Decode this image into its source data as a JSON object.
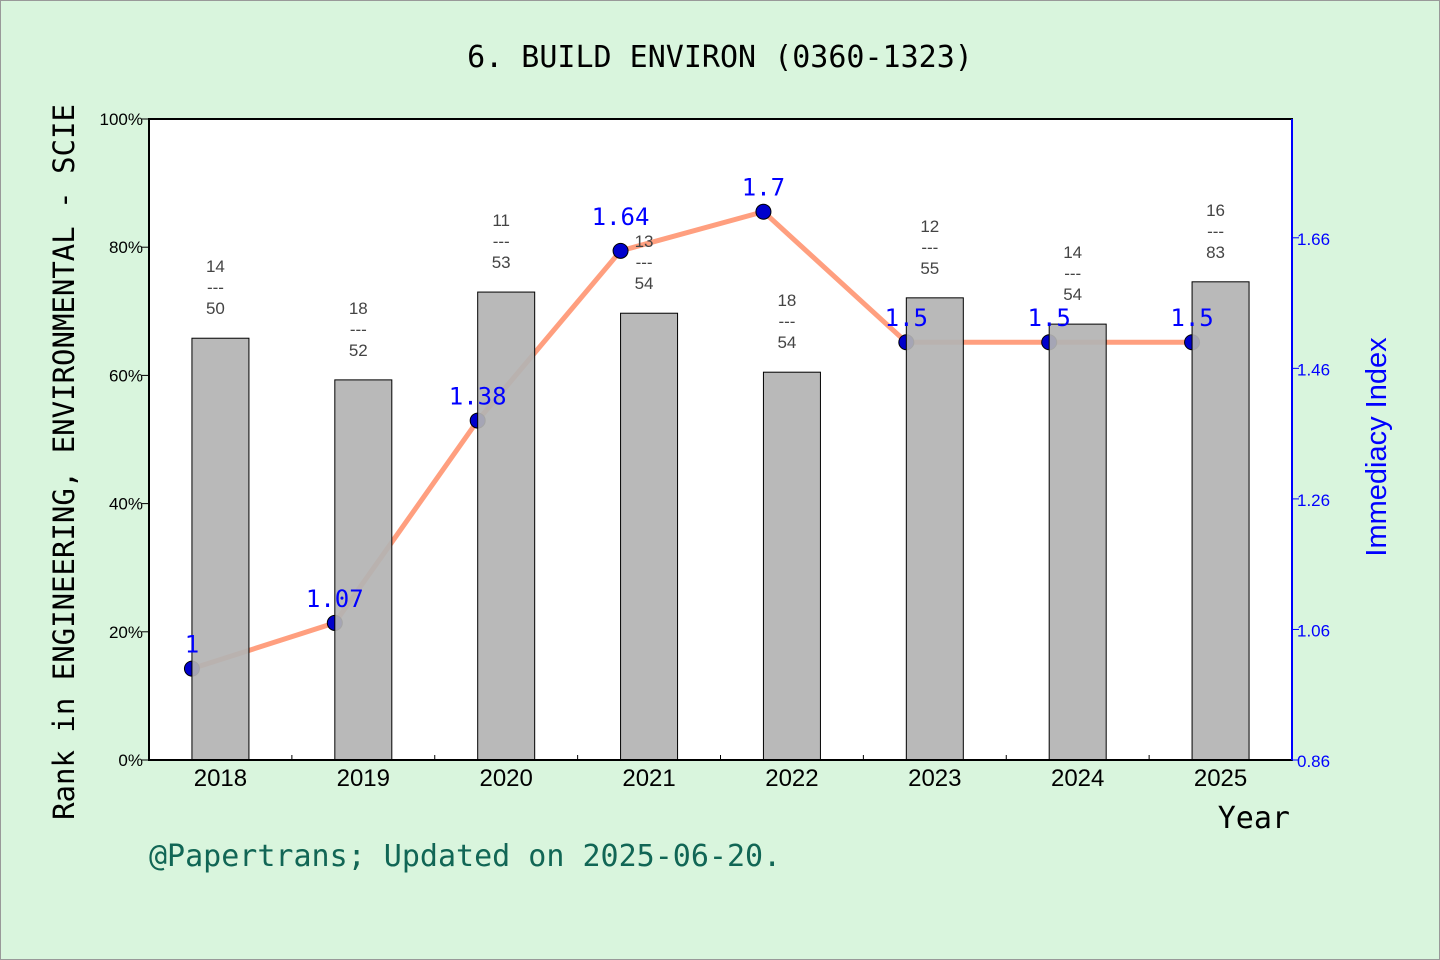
{
  "chart_data": {
    "type": "bar+line",
    "title": "6. BUILD ENVIRON (0360-1323)",
    "xlabel": "Year",
    "ylabel_left": "Rank in ENGINEERING, ENVIRONMENTAL - SCIE",
    "ylabel_right": "Immediacy Index",
    "categories": [
      "2018",
      "2019",
      "2020",
      "2021",
      "2022",
      "2023",
      "2024",
      "2025"
    ],
    "left_ticks": [
      "0%",
      "20%",
      "40%",
      "60%",
      "80%",
      "100%"
    ],
    "left_ylim": [
      0,
      100
    ],
    "right_ticks": [
      "0.86",
      "1.06",
      "1.26",
      "1.46",
      "1.66"
    ],
    "right_ylim": [
      0.86,
      1.842
    ],
    "bars": {
      "values_percent": [
        65.8,
        59.3,
        73.0,
        69.7,
        60.5,
        72.1,
        68.0,
        74.6
      ],
      "rank": [
        "14",
        "18",
        "11",
        "13",
        "18",
        "12",
        "14",
        "16"
      ],
      "total": [
        "50",
        "52",
        "53",
        "54",
        "54",
        "55",
        "54",
        "83"
      ],
      "separator": "---",
      "color": "#b3b3b3"
    },
    "line": {
      "values": [
        1.0,
        1.07,
        1.38,
        1.64,
        1.7,
        1.5,
        1.5,
        1.5
      ],
      "labels": [
        "1",
        "1.07",
        "1.38",
        "1.64",
        "1.7",
        "1.5",
        "1.5",
        "1.5"
      ],
      "line_color": "#ff9f7f",
      "marker_color": "#0000cc"
    },
    "grid": false
  },
  "footer": "@Papertrans; Updated on 2025-06-20."
}
